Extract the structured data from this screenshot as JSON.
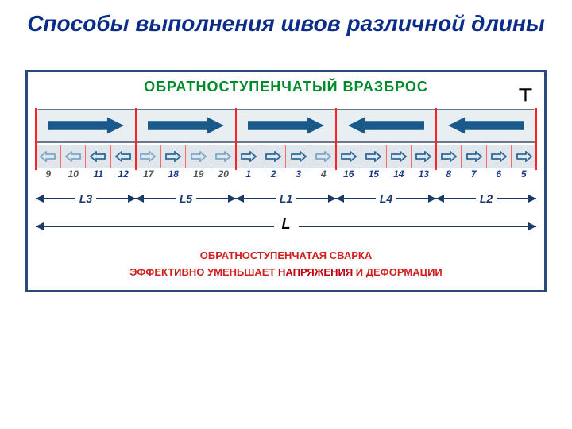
{
  "title": {
    "text": "Способы выполнения швов различной длины",
    "color": "#0a2d8a",
    "fontsize": 28
  },
  "subtitle": {
    "text": "ОБРАТНОСТУПЕНЧАТЫЙ ВРАЗБРОС",
    "color": "#008a2a",
    "fontsize": 18
  },
  "colors": {
    "frame": "#2a4a7a",
    "big_arrow": "#1a5a8a",
    "small_arrow_dark": "#2a6a9a",
    "small_arrow_light": "#7aa8c8",
    "red_divider": "#ff2222",
    "dim_line": "#1a3a6a",
    "num_dark": "#1a3a8a"
  },
  "top_arrows": [
    {
      "dir": "right"
    },
    {
      "dir": "right"
    },
    {
      "dir": "right"
    },
    {
      "dir": "left"
    },
    {
      "dir": "left"
    }
  ],
  "segments": [
    {
      "num": "9",
      "dir": "left",
      "shade": "light"
    },
    {
      "num": "10",
      "dir": "left",
      "shade": "light"
    },
    {
      "num": "11",
      "dir": "left",
      "shade": "dark"
    },
    {
      "num": "12",
      "dir": "left",
      "shade": "dark"
    },
    {
      "num": "17",
      "dir": "right",
      "shade": "light"
    },
    {
      "num": "18",
      "dir": "right",
      "shade": "dark"
    },
    {
      "num": "19",
      "dir": "right",
      "shade": "light"
    },
    {
      "num": "20",
      "dir": "right",
      "shade": "light"
    },
    {
      "num": "1",
      "dir": "right",
      "shade": "dark"
    },
    {
      "num": "2",
      "dir": "right",
      "shade": "dark"
    },
    {
      "num": "3",
      "dir": "right",
      "shade": "dark"
    },
    {
      "num": "4",
      "dir": "right",
      "shade": "light"
    },
    {
      "num": "16",
      "dir": "right",
      "shade": "dark"
    },
    {
      "num": "15",
      "dir": "right",
      "shade": "dark"
    },
    {
      "num": "14",
      "dir": "right",
      "shade": "dark"
    },
    {
      "num": "13",
      "dir": "right",
      "shade": "dark"
    },
    {
      "num": "8",
      "dir": "right",
      "shade": "dark"
    },
    {
      "num": "7",
      "dir": "right",
      "shade": "dark"
    },
    {
      "num": "6",
      "dir": "right",
      "shade": "dark"
    },
    {
      "num": "5",
      "dir": "right",
      "shade": "dark"
    }
  ],
  "red_dividers_pct": [
    0,
    20,
    40,
    60,
    80,
    100
  ],
  "dim_segments": [
    {
      "label": "L3",
      "left_pct": 0,
      "width_pct": 20
    },
    {
      "label": "L5",
      "left_pct": 20,
      "width_pct": 20
    },
    {
      "label": "L1",
      "left_pct": 40,
      "width_pct": 20
    },
    {
      "label": "L4",
      "left_pct": 60,
      "width_pct": 20
    },
    {
      "label": "L2",
      "left_pct": 80,
      "width_pct": 20
    }
  ],
  "dim_total_label": "L",
  "bottom_text": {
    "line1": "ОБРАТНОСТУПЕНЧАТАЯ СВАРКА",
    "line2_a": "ЭФФЕКТИВНО УМЕНЬШАЕТ ",
    "line2_hl": "НАПРЯЖЕНИЯ",
    "line2_b": " И ДЕФОРМАЦИИ",
    "color": "#d02020",
    "hl_color": "#c00010"
  },
  "edge_mark": "⊤"
}
